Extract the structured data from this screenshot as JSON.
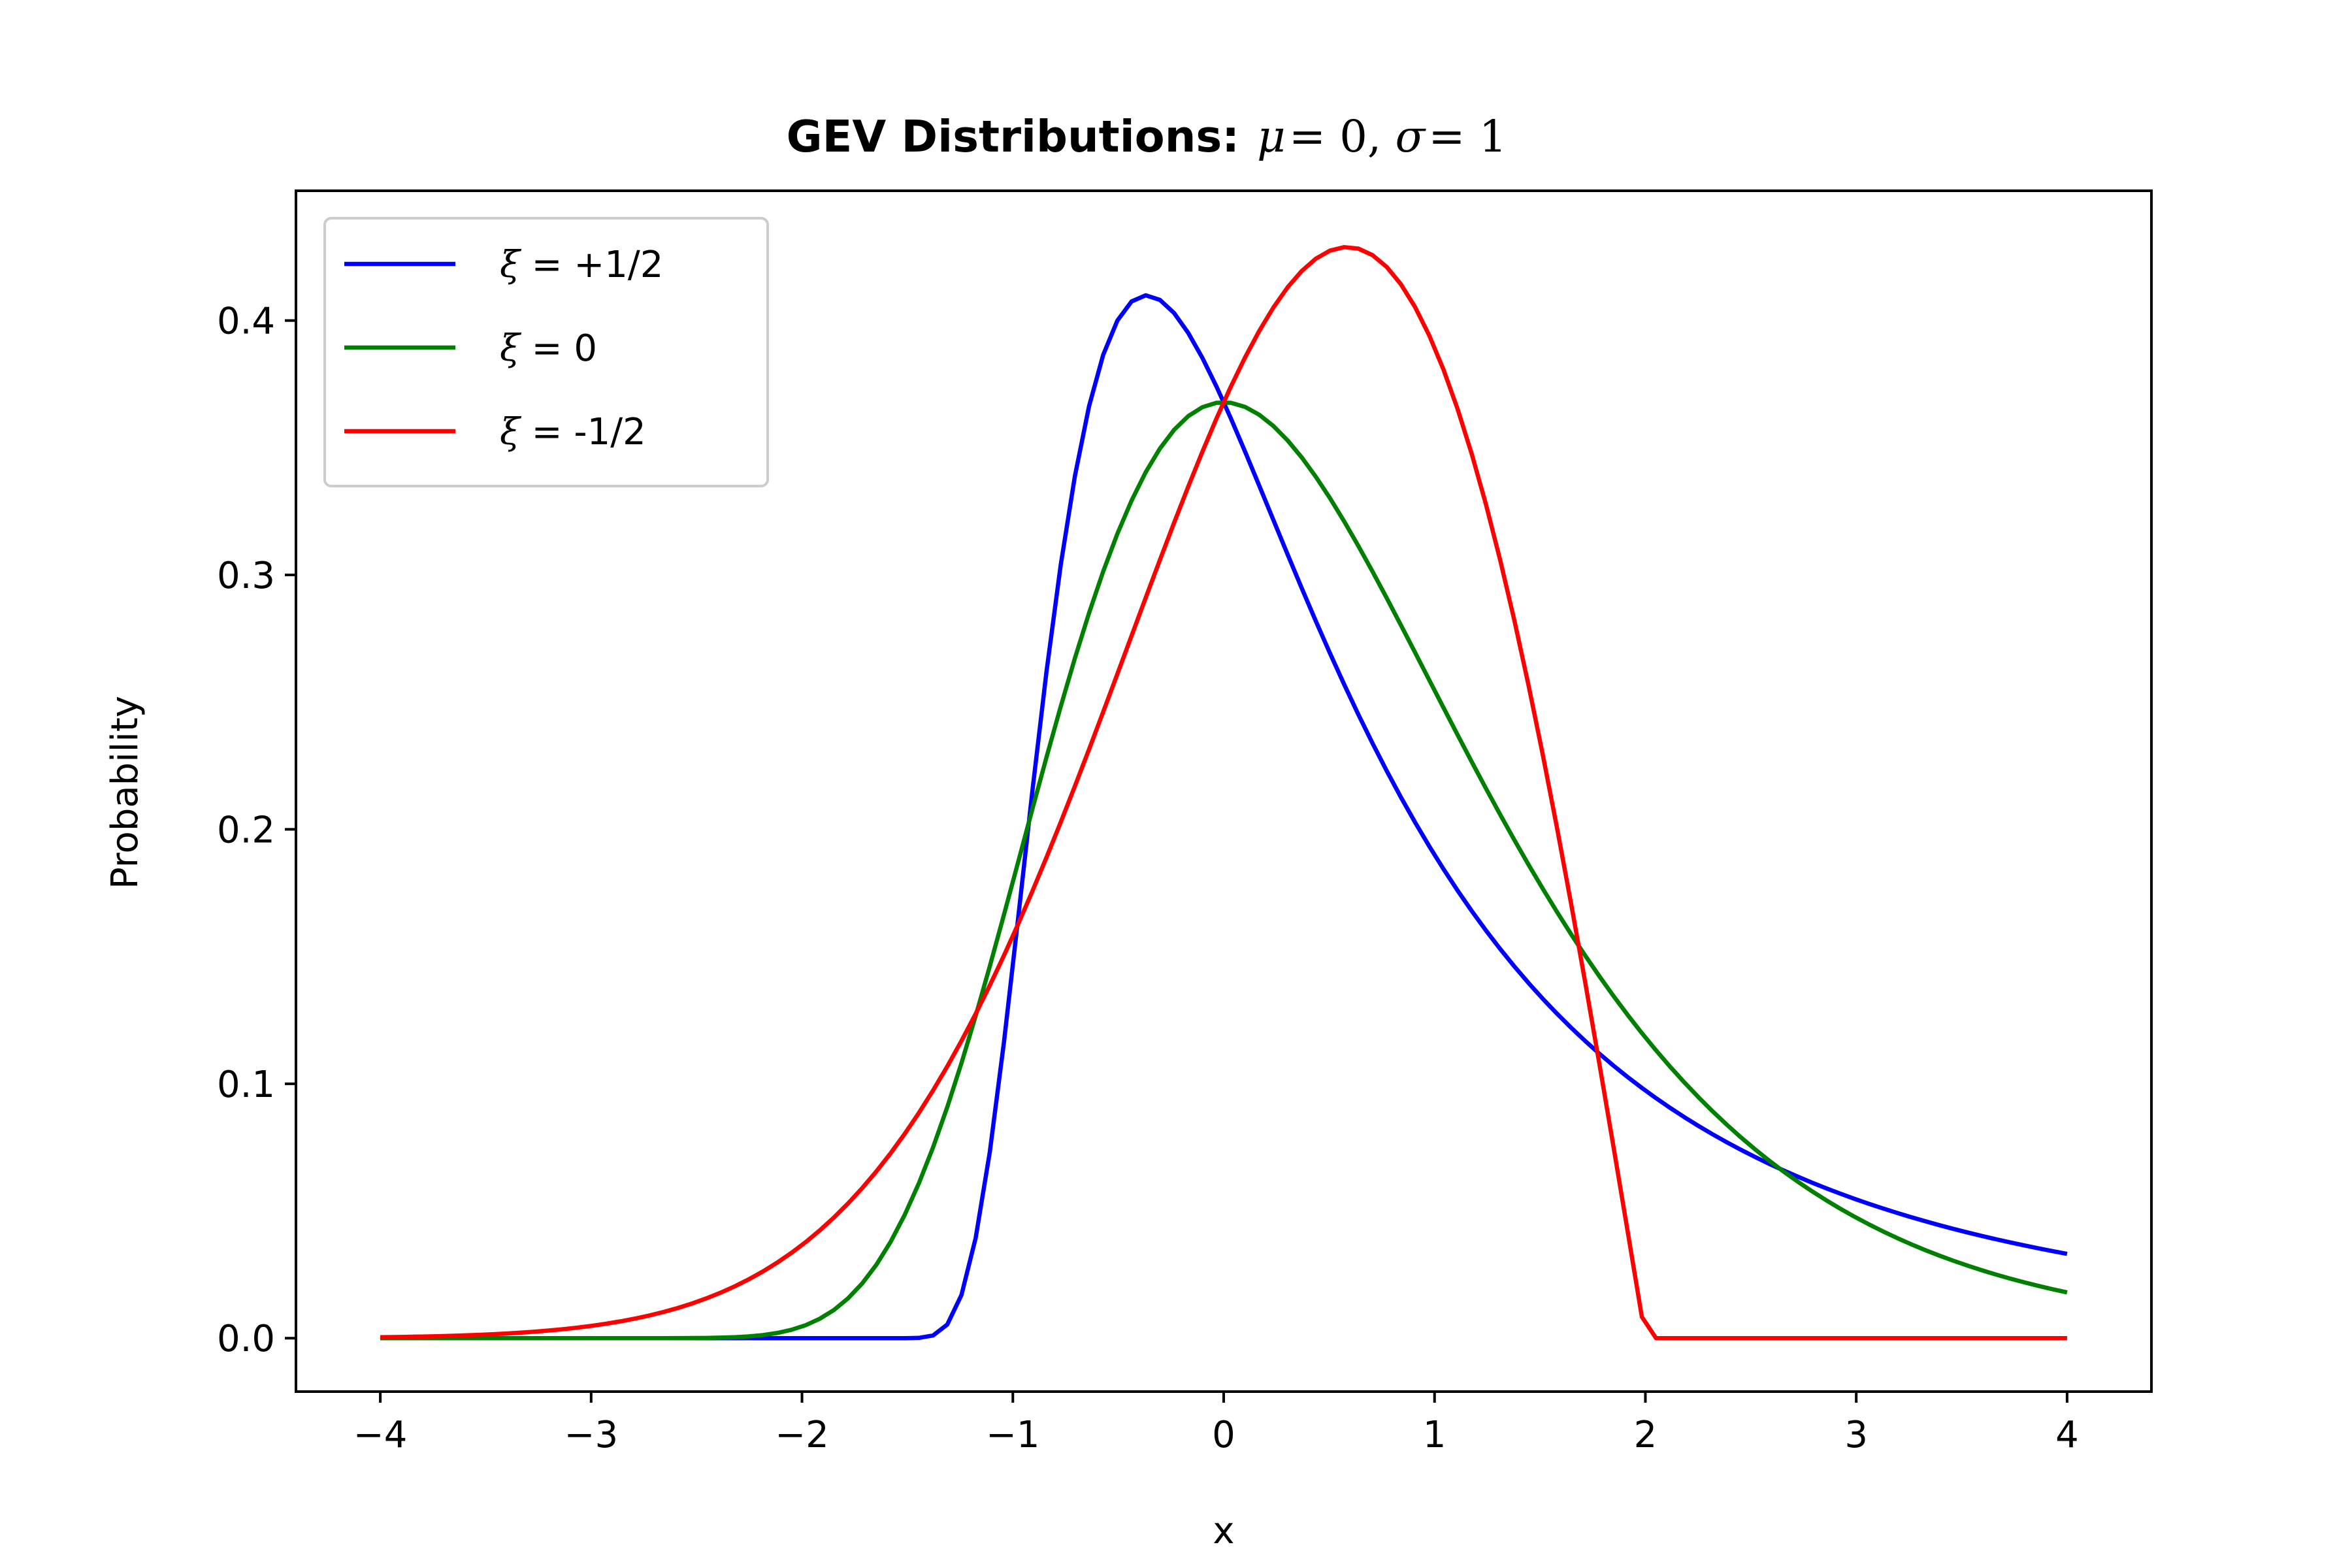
{
  "chart_data": {
    "type": "line",
    "title": {
      "bold": "GEV Distributions:",
      "math": "μ = 0, σ = 1",
      "math_parts": [
        "μ",
        " = 0, ",
        "σ",
        " = 1"
      ]
    },
    "xlabel": "x",
    "ylabel": "Probability",
    "xlim": [
      -4.4,
      4.4
    ],
    "ylim": [
      -0.021,
      0.451
    ],
    "x_ticks": [
      -4,
      -3,
      -2,
      -1,
      0,
      1,
      2,
      3,
      4
    ],
    "x_tick_labels": [
      "−4",
      "−3",
      "−2",
      "−1",
      "0",
      "1",
      "2",
      "3",
      "4"
    ],
    "y_ticks": [
      0.0,
      0.1,
      0.2,
      0.3,
      0.4
    ],
    "y_tick_labels": [
      "0.0",
      "0.1",
      "0.2",
      "0.3",
      "0.4"
    ],
    "grid": false,
    "legend_position": "upper-left",
    "series": [
      {
        "name": "ξ = +1/2",
        "legend_symbol": "ξ",
        "legend_rest": " = +1/2",
        "color": "#0000ff",
        "xi": 0.5
      },
      {
        "name": "ξ = 0",
        "legend_symbol": "ξ",
        "legend_rest": " = 0",
        "color": "#008000",
        "xi": 0.0
      },
      {
        "name": "ξ = -1/2",
        "legend_symbol": "ξ",
        "legend_rest": " = -1/2",
        "color": "#ff0000",
        "xi": -0.5
      }
    ],
    "x_range": [
      -4,
      4
    ],
    "num_points": 120
  }
}
